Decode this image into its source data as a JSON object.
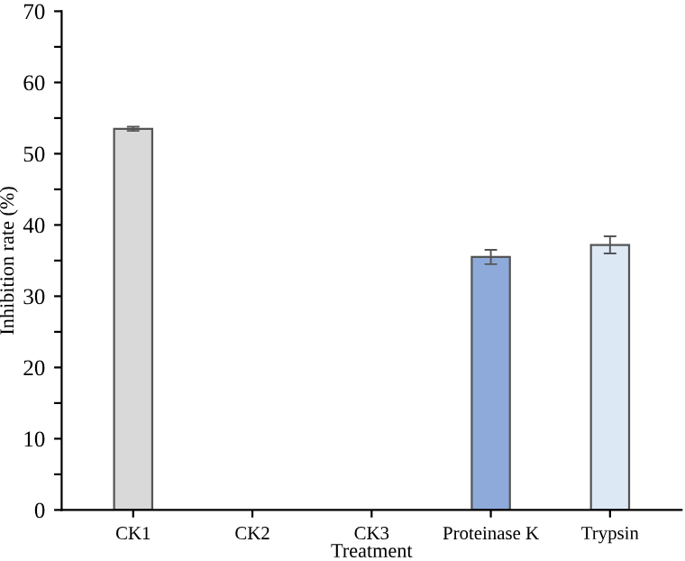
{
  "chart_data": {
    "type": "bar",
    "xlabel": "Treatment",
    "ylabel": "Inhibition rate (%)",
    "categories": [
      "CK1",
      "CK2",
      "CK3",
      "Proteinase K",
      "Trypsin"
    ],
    "values": [
      53.5,
      null,
      null,
      35.5,
      37.2
    ],
    "errors": [
      0.3,
      null,
      null,
      1.0,
      1.2
    ],
    "colors": [
      "#d9d9d9",
      null,
      null,
      "#8eaadb",
      "#dde8f5"
    ],
    "ylim": [
      0,
      70
    ],
    "yticks": [
      0,
      {
        "value": 5,
        "label": null
      },
      10,
      {
        "value": 15,
        "label": null
      },
      20,
      {
        "value": 25,
        "label": null
      },
      30,
      {
        "value": 35,
        "label": null
      },
      40,
      {
        "value": 45,
        "label": null
      },
      50,
      {
        "value": 55,
        "label": null
      },
      60,
      {
        "value": 65,
        "label": null
      },
      70
    ],
    "grid": false
  }
}
